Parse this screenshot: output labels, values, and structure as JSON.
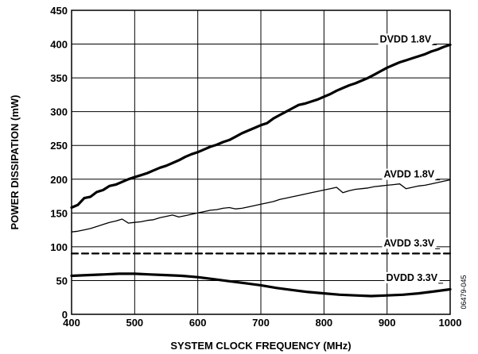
{
  "chart_data": {
    "type": "line",
    "title": "",
    "xlabel": "SYSTEM CLOCK FREQUENCY (MHz)",
    "ylabel": "POWER DISSIPATION (mW)",
    "xlim": [
      400,
      1000
    ],
    "ylim": [
      0,
      450
    ],
    "x_ticks": [
      400,
      500,
      600,
      700,
      800,
      900,
      1000
    ],
    "y_ticks": [
      0,
      50,
      100,
      150,
      200,
      250,
      300,
      350,
      400,
      450
    ],
    "grid": true,
    "figure_id": "06479-045",
    "series": [
      {
        "name": "DVDD 1.8V",
        "style": "thick",
        "x": [
          400,
          410,
          420,
          430,
          440,
          450,
          460,
          470,
          480,
          490,
          500,
          510,
          520,
          530,
          540,
          550,
          560,
          570,
          580,
          590,
          600,
          610,
          620,
          630,
          640,
          650,
          660,
          670,
          680,
          690,
          700,
          710,
          720,
          730,
          740,
          750,
          760,
          770,
          780,
          790,
          800,
          810,
          820,
          830,
          840,
          850,
          860,
          870,
          880,
          890,
          900,
          910,
          920,
          930,
          940,
          950,
          960,
          970,
          980,
          990,
          1000
        ],
        "values": [
          158,
          162,
          172,
          174,
          181,
          184,
          190,
          192,
          196,
          200,
          203,
          206,
          209,
          213,
          217,
          220,
          224,
          228,
          233,
          237,
          240,
          244,
          248,
          251,
          255,
          258,
          263,
          268,
          272,
          276,
          280,
          283,
          290,
          295,
          300,
          305,
          310,
          312,
          315,
          318,
          322,
          326,
          331,
          335,
          339,
          342,
          346,
          350,
          355,
          360,
          365,
          369,
          373,
          376,
          379,
          382,
          385,
          389,
          392,
          396,
          399
        ]
      },
      {
        "name": "AVDD 1.8V",
        "style": "thin",
        "x": [
          400,
          410,
          420,
          430,
          440,
          450,
          460,
          470,
          480,
          490,
          500,
          510,
          520,
          530,
          540,
          550,
          560,
          570,
          580,
          590,
          600,
          610,
          620,
          630,
          640,
          650,
          660,
          670,
          680,
          690,
          700,
          710,
          720,
          730,
          740,
          750,
          760,
          770,
          780,
          790,
          800,
          810,
          820,
          830,
          840,
          850,
          860,
          870,
          880,
          890,
          900,
          910,
          920,
          930,
          940,
          950,
          960,
          970,
          980,
          990,
          1000
        ],
        "values": [
          122,
          123,
          125,
          127,
          130,
          133,
          136,
          138,
          141,
          135,
          136,
          137,
          139,
          140,
          143,
          145,
          147,
          144,
          146,
          148,
          150,
          152,
          154,
          155,
          157,
          158,
          156,
          157,
          159,
          161,
          163,
          165,
          167,
          170,
          172,
          174,
          176,
          178,
          180,
          182,
          184,
          186,
          188,
          180,
          183,
          185,
          186,
          187,
          189,
          190,
          191,
          192,
          193,
          186,
          188,
          190,
          191,
          193,
          195,
          197,
          199
        ]
      },
      {
        "name": "AVDD 3.3V",
        "style": "dashed",
        "x": [
          400,
          1000
        ],
        "values": [
          90,
          90
        ]
      },
      {
        "name": "DVDD 3.3V",
        "style": "thick",
        "x": [
          400,
          425,
          450,
          475,
          500,
          525,
          550,
          575,
          600,
          625,
          650,
          675,
          700,
          725,
          750,
          775,
          800,
          825,
          850,
          875,
          900,
          925,
          950,
          975,
          1000
        ],
        "values": [
          57,
          58,
          59,
          60,
          60,
          59,
          58,
          57,
          55,
          52,
          49,
          46,
          43,
          39,
          36,
          33,
          31,
          29,
          28,
          27,
          28,
          29,
          31,
          34,
          37
        ]
      }
    ],
    "labels": [
      {
        "text": "DVDD 1.8V",
        "series": 0,
        "line_end_x": 975,
        "line_end_y": 399
      },
      {
        "text": "AVDD 1.8V",
        "series": 1,
        "line_end_x": 980,
        "line_end_y": 199
      },
      {
        "text": "AVDD 3.3V",
        "series": 2,
        "line_end_x": 980,
        "line_end_y": 97
      },
      {
        "text": "DVDD 3.3V",
        "series": 3,
        "line_end_x": 985,
        "line_end_y": 46
      }
    ]
  }
}
